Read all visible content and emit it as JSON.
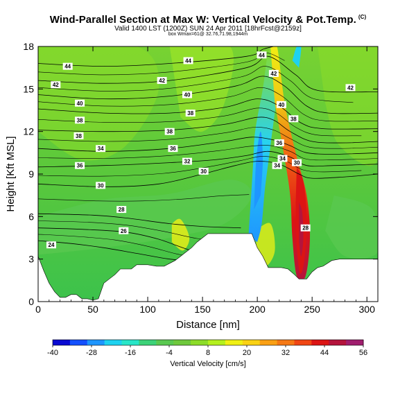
{
  "header": {
    "title": "Wind-Parallel Section at Max W: Vertical Velocity & Pot.Temp.",
    "copyright": "(C)",
    "valid_time": "Valid 1400 LST (1200Z) SUN 24 Apr 2011",
    "forecast_info": "[18hrFcst@2159z]",
    "location_info": "box Wmax=61@ 32.76,71.98,1944m"
  },
  "chart_data": {
    "type": "heatmap",
    "title": "Wind-Parallel Section at Max W: Vertical Velocity & Pot.Temp.",
    "xlabel": "Distance [nm]",
    "ylabel": "Height [Kft MSL]",
    "xlim": [
      0,
      310
    ],
    "ylim": [
      0,
      18
    ],
    "xticks": [
      0,
      50,
      100,
      150,
      200,
      250,
      300
    ],
    "yticks": [
      0,
      3,
      6,
      9,
      12,
      15,
      18
    ],
    "colorbar": {
      "label": "Vertical Velocity [cm/s]",
      "ticks": [
        -40,
        -28,
        -16,
        -4,
        8,
        20,
        32,
        44,
        56
      ],
      "colors": [
        "#0a0ad2",
        "#1450ff",
        "#1e96ff",
        "#1ed2f0",
        "#28e6c8",
        "#3cd278",
        "#5ac850",
        "#6ec83c",
        "#8cdc28",
        "#b4f01e",
        "#f0f014",
        "#fad214",
        "#faa014",
        "#f57814",
        "#f04614",
        "#dc1414",
        "#b4143c",
        "#a01e6e"
      ]
    },
    "terrain": [
      [
        0,
        3.2
      ],
      [
        5,
        2.2
      ],
      [
        10,
        1.3
      ],
      [
        15,
        0.7
      ],
      [
        20,
        0.3
      ],
      [
        25,
        0.3
      ],
      [
        30,
        0.5
      ],
      [
        35,
        0.5
      ],
      [
        40,
        0.2
      ],
      [
        45,
        0.2
      ],
      [
        50,
        0.1
      ],
      [
        55,
        0.2
      ],
      [
        60,
        1.3
      ],
      [
        65,
        1.6
      ],
      [
        70,
        1.9
      ],
      [
        75,
        2.3
      ],
      [
        85,
        2.3
      ],
      [
        90,
        2.6
      ],
      [
        95,
        2.6
      ],
      [
        100,
        2.6
      ],
      [
        108,
        2.5
      ],
      [
        115,
        2.5
      ],
      [
        120,
        2.7
      ],
      [
        125,
        2.9
      ],
      [
        130,
        3.2
      ],
      [
        135,
        3.5
      ],
      [
        140,
        3.8
      ],
      [
        145,
        4.2
      ],
      [
        150,
        4.5
      ],
      [
        155,
        4.8
      ],
      [
        195,
        4.8
      ],
      [
        200,
        3.8
      ],
      [
        205,
        3.2
      ],
      [
        210,
        2.4
      ],
      [
        215,
        2.4
      ],
      [
        222,
        2.4
      ],
      [
        228,
        2.3
      ],
      [
        234,
        1.9
      ],
      [
        238,
        1.6
      ],
      [
        245,
        1.6
      ],
      [
        250,
        2.1
      ],
      [
        255,
        2.4
      ],
      [
        260,
        2.5
      ],
      [
        268,
        2.9
      ],
      [
        275,
        3.0
      ],
      [
        285,
        3.0
      ],
      [
        300,
        3.0
      ],
      [
        310,
        3.0
      ]
    ],
    "contours": [
      {
        "label": "24",
        "pts": [
          [
            0,
            4.3
          ],
          [
            30,
            4.1
          ],
          [
            60,
            3.8
          ],
          [
            90,
            3.4
          ],
          [
            120,
            3.0
          ],
          [
            150,
            2.8
          ]
        ]
      },
      {
        "label": "26",
        "pts": [
          [
            0,
            5.2
          ],
          [
            40,
            5.1
          ],
          [
            80,
            4.9
          ],
          [
            110,
            4.4
          ],
          [
            140,
            3.6
          ],
          [
            165,
            3.3
          ]
        ]
      },
      {
        "label": "28",
        "pts": [
          [
            0,
            6.2
          ],
          [
            50,
            6.1
          ],
          [
            80,
            5.9
          ],
          [
            120,
            5.5
          ],
          [
            150,
            5.3
          ],
          [
            185,
            5.2
          ]
        ]
      },
      {
        "label": "30",
        "pts": [
          [
            0,
            8.3
          ],
          [
            60,
            8.1
          ],
          [
            110,
            8.3
          ],
          [
            150,
            9.0
          ],
          [
            180,
            9.6
          ],
          [
            200,
            9.9
          ],
          [
            220,
            9.7
          ],
          [
            238,
            9.0
          ],
          [
            250,
            8.7
          ],
          [
            280,
            8.8
          ],
          [
            310,
            9.0
          ]
        ]
      },
      {
        "label": "32",
        "pts": [
          [
            0,
            9.5
          ],
          [
            60,
            9.6
          ],
          [
            120,
            9.8
          ],
          [
            160,
            10.0
          ],
          [
            190,
            10.3
          ],
          [
            210,
            10.6
          ],
          [
            230,
            10.2
          ],
          [
            245,
            9.6
          ],
          [
            270,
            9.6
          ],
          [
            310,
            9.7
          ]
        ]
      },
      {
        "label": "34",
        "pts": [
          [
            0,
            10.8
          ],
          [
            60,
            10.6
          ],
          [
            120,
            10.8
          ],
          [
            170,
            11.3
          ],
          [
            195,
            11.6
          ],
          [
            215,
            11.4
          ],
          [
            230,
            11.0
          ],
          [
            245,
            10.5
          ],
          [
            270,
            10.4
          ],
          [
            310,
            10.5
          ]
        ]
      },
      {
        "label": "36",
        "pts": [
          [
            0,
            12.1
          ],
          [
            60,
            12.0
          ],
          [
            120,
            12.1
          ],
          [
            170,
            12.5
          ],
          [
            200,
            13.0
          ],
          [
            215,
            12.8
          ],
          [
            230,
            12.0
          ],
          [
            250,
            11.3
          ],
          [
            280,
            11.2
          ],
          [
            310,
            11.3
          ]
        ]
      },
      {
        "label": "38",
        "pts": [
          [
            0,
            13.6
          ],
          [
            60,
            13.3
          ],
          [
            120,
            13.3
          ],
          [
            170,
            13.7
          ],
          [
            200,
            14.3
          ],
          [
            220,
            13.8
          ],
          [
            240,
            12.6
          ],
          [
            260,
            12.2
          ],
          [
            310,
            12.2
          ]
        ]
      },
      {
        "label": "40",
        "pts": [
          [
            0,
            14.6
          ],
          [
            60,
            14.3
          ],
          [
            120,
            14.5
          ],
          [
            180,
            15.2
          ],
          [
            205,
            15.9
          ],
          [
            225,
            15.2
          ],
          [
            245,
            13.8
          ],
          [
            265,
            13.3
          ],
          [
            310,
            13.3
          ]
        ]
      },
      {
        "label": "42",
        "pts": [
          [
            0,
            15.6
          ],
          [
            60,
            15.4
          ],
          [
            120,
            15.6
          ],
          [
            190,
            16.5
          ],
          [
            210,
            17.3
          ],
          [
            235,
            16.0
          ],
          [
            255,
            14.9
          ],
          [
            310,
            14.8
          ]
        ]
      },
      {
        "label": "44",
        "pts": [
          [
            0,
            16.8
          ],
          [
            60,
            16.6
          ],
          [
            120,
            16.8
          ],
          [
            190,
            17.3
          ],
          [
            205,
            17.8
          ],
          [
            215,
            18.0
          ]
        ]
      }
    ],
    "contour_labels": [
      {
        "text": "44",
        "x": 27,
        "y": 16.6
      },
      {
        "text": "44",
        "x": 137,
        "y": 17.0
      },
      {
        "text": "44",
        "x": 204,
        "y": 17.4
      },
      {
        "text": "42",
        "x": 16,
        "y": 15.3
      },
      {
        "text": "42",
        "x": 113,
        "y": 15.6
      },
      {
        "text": "42",
        "x": 215,
        "y": 16.1
      },
      {
        "text": "42",
        "x": 285,
        "y": 15.1
      },
      {
        "text": "40",
        "x": 38,
        "y": 14.0
      },
      {
        "text": "40",
        "x": 136,
        "y": 14.6
      },
      {
        "text": "40",
        "x": 222,
        "y": 13.9
      },
      {
        "text": "38",
        "x": 38,
        "y": 12.8
      },
      {
        "text": "38",
        "x": 139,
        "y": 13.3
      },
      {
        "text": "38",
        "x": 233,
        "y": 12.9
      },
      {
        "text": "38",
        "x": 37,
        "y": 11.7
      },
      {
        "text": "38",
        "x": 120,
        "y": 12.0
      },
      {
        "text": "36",
        "x": 38,
        "y": 9.6
      },
      {
        "text": "36",
        "x": 123,
        "y": 10.8
      },
      {
        "text": "36",
        "x": 220,
        "y": 11.2
      },
      {
        "text": "34",
        "x": 57,
        "y": 10.8
      },
      {
        "text": "34",
        "x": 223,
        "y": 10.1
      },
      {
        "text": "34",
        "x": 218,
        "y": 9.6
      },
      {
        "text": "32",
        "x": 136,
        "y": 9.9
      },
      {
        "text": "30",
        "x": 236,
        "y": 9.8
      },
      {
        "text": "30",
        "x": 151,
        "y": 9.2
      },
      {
        "text": "30",
        "x": 57,
        "y": 8.2
      },
      {
        "text": "28",
        "x": 76,
        "y": 6.5
      },
      {
        "text": "28",
        "x": 244,
        "y": 5.2
      },
      {
        "text": "26",
        "x": 78,
        "y": 5.0
      },
      {
        "text": "24",
        "x": 12,
        "y": 4.0
      }
    ]
  }
}
